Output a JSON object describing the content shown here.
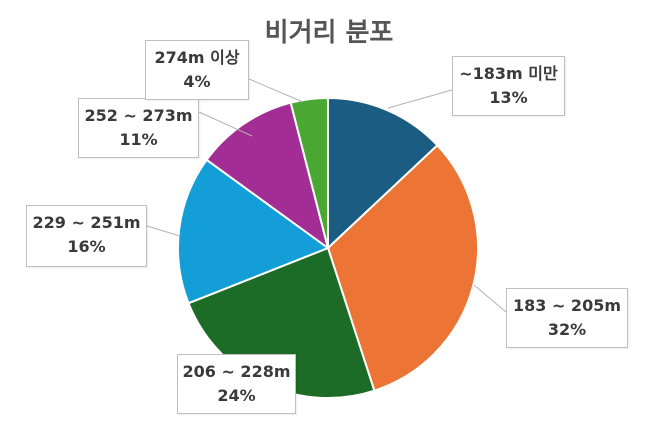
{
  "chart_data": {
    "type": "pie",
    "title": "비거리 분포",
    "slices": [
      {
        "label": "~183m 미만",
        "value": 13,
        "value_label": "13%",
        "color": "#1a5c82"
      },
      {
        "label": "183 ~ 205m",
        "value": 32,
        "value_label": "32%",
        "color": "#ec7535"
      },
      {
        "label": "206 ~ 228m",
        "value": 24,
        "value_label": "24%",
        "color": "#1c6b27"
      },
      {
        "label": "229 ~ 251m",
        "value": 16,
        "value_label": "16%",
        "color": "#139ed8"
      },
      {
        "label": "252 ~ 273m",
        "value": 11,
        "value_label": "11%",
        "color": "#a22d94"
      },
      {
        "label": "274m 이상",
        "value": 4,
        "value_label": "4%",
        "color": "#4aa832"
      }
    ],
    "legend": "none",
    "label_style": "callout"
  }
}
